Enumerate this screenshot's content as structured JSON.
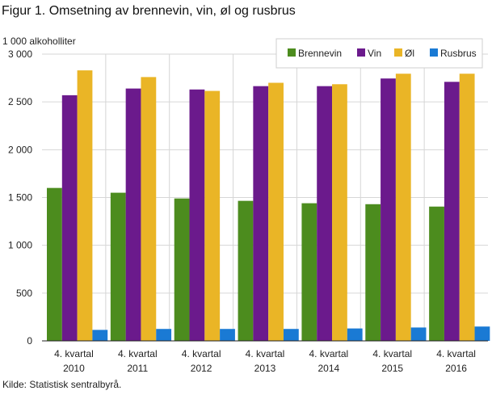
{
  "title": "Figur 1. Omsetning av brennevin, vin, øl og rusbrus",
  "source": "Kilde: Statistisk sentralbyrå.",
  "chart_data": {
    "type": "bar",
    "ylabel": "1 000 alkoholliter",
    "ylim": [
      0,
      3000
    ],
    "yticks": [
      0,
      500,
      1000,
      1500,
      2000,
      2500,
      3000
    ],
    "ytick_labels": [
      "0",
      "500",
      "1 000",
      "1 500",
      "2 000",
      "2 500",
      "3 000"
    ],
    "grid": true,
    "legend_position": "top-right",
    "categories": [
      [
        "4. kvartal",
        "2010"
      ],
      [
        "4. kvartal",
        "2011"
      ],
      [
        "4. kvartal",
        "2012"
      ],
      [
        "4. kvartal",
        "2013"
      ],
      [
        "4. kvartal",
        "2014"
      ],
      [
        "4. kvartal",
        "2015"
      ],
      [
        "4. kvartal",
        "2016"
      ]
    ],
    "series": [
      {
        "name": "Brennevin",
        "color": "#4c8c1e",
        "values": [
          1600,
          1550,
          1490,
          1465,
          1440,
          1430,
          1405
        ]
      },
      {
        "name": "Vin",
        "color": "#6b1a8c",
        "values": [
          2570,
          2640,
          2630,
          2665,
          2665,
          2745,
          2710
        ]
      },
      {
        "name": "Øl",
        "color": "#eab526",
        "values": [
          2830,
          2760,
          2615,
          2700,
          2685,
          2795,
          2795
        ]
      },
      {
        "name": "Rusbrus",
        "color": "#1a7ad4",
        "values": [
          115,
          125,
          125,
          125,
          130,
          140,
          150
        ]
      }
    ]
  }
}
